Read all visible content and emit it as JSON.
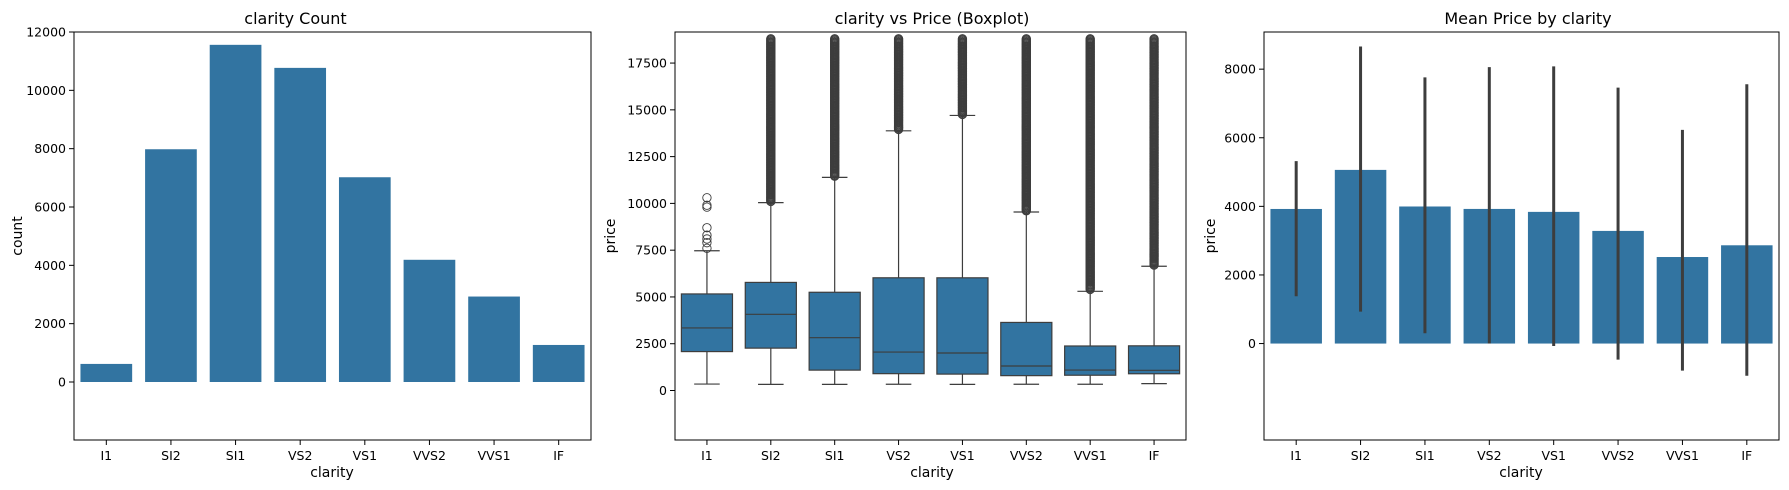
{
  "colors": {
    "bar": "#3274a1",
    "line": "#3d3d3d",
    "axis": "#000000"
  },
  "chart_data": [
    {
      "type": "bar",
      "title": "clarity Count",
      "xlabel": "clarity",
      "ylabel": "count",
      "categories": [
        "I1",
        "SI2",
        "SI1",
        "VS2",
        "VS1",
        "VVS2",
        "VVS1",
        "IF"
      ],
      "values": [
        620,
        7980,
        11560,
        10770,
        7020,
        4190,
        2930,
        1270
      ],
      "ylim": [
        0,
        12000
      ],
      "yticks": [
        "0",
        "2000",
        "4000",
        "6000",
        "8000",
        "10000",
        "12000"
      ],
      "grid": false
    },
    {
      "type": "boxplot",
      "title": "clarity vs Price (Boxplot)",
      "xlabel": "clarity",
      "ylabel": "price",
      "categories": [
        "I1",
        "SI2",
        "SI1",
        "VS2",
        "VS1",
        "VVS2",
        "VVS1",
        "IF"
      ],
      "ylim": [
        0,
        19000
      ],
      "yticks": [
        "0",
        "2500",
        "5000",
        "7500",
        "10000",
        "12500",
        "15000",
        "17500"
      ],
      "boxes": [
        {
          "label": "I1",
          "whislo": 345,
          "q1": 2080,
          "med": 3344,
          "q3": 5161,
          "whishi": 7470,
          "outliers": [
            7600,
            7900,
            8100,
            8300,
            8700,
            9800,
            9900,
            10300
          ]
        },
        {
          "label": "SI2",
          "whislo": 326,
          "q1": 2264,
          "med": 4072,
          "q3": 5777,
          "whishi": 10040,
          "outlier_range": [
            10100,
            18800
          ]
        },
        {
          "label": "SI1",
          "whislo": 326,
          "q1": 1089,
          "med": 2822,
          "q3": 5250,
          "whishi": 11390,
          "outlier_range": [
            11450,
            18800
          ]
        },
        {
          "label": "VS2",
          "whislo": 334,
          "q1": 900,
          "med": 2054,
          "q3": 6024,
          "whishi": 13880,
          "outlier_range": [
            13950,
            18800
          ]
        },
        {
          "label": "VS1",
          "whislo": 327,
          "q1": 876,
          "med": 2005,
          "q3": 6023,
          "whishi": 14700,
          "outlier_range": [
            14750,
            18800
          ]
        },
        {
          "label": "VVS2",
          "whislo": 336,
          "q1": 794,
          "med": 1311,
          "q3": 3638,
          "whishi": 9540,
          "outlier_range": [
            9600,
            18800
          ]
        },
        {
          "label": "VVS1",
          "whislo": 336,
          "q1": 816,
          "med": 1093,
          "q3": 2379,
          "whishi": 5300,
          "outlier_range": [
            5400,
            18800
          ]
        },
        {
          "label": "IF",
          "whislo": 369,
          "q1": 895,
          "med": 1080,
          "q3": 2388,
          "whishi": 6640,
          "outlier_range": [
            6700,
            18800
          ]
        }
      ],
      "grid": false
    },
    {
      "type": "bar",
      "title": "Mean Price by clarity",
      "xlabel": "clarity",
      "ylabel": "price",
      "categories": [
        "I1",
        "SI2",
        "SI1",
        "VS2",
        "VS1",
        "VVS2",
        "VVS1",
        "IF"
      ],
      "values": [
        3924,
        5063,
        3996,
        3925,
        3839,
        3284,
        2523,
        2865
      ],
      "errors": [
        [
          1380,
          5320
        ],
        [
          930,
          8660
        ],
        [
          300,
          7760
        ],
        [
          0,
          8060
        ],
        [
          -70,
          8080
        ],
        [
          -470,
          7460
        ],
        [
          -790,
          6230
        ],
        [
          -940,
          7560
        ]
      ],
      "ylim": [
        -1500,
        9200
      ],
      "yticks": [
        "0",
        "2000",
        "4000",
        "6000",
        "8000"
      ],
      "grid": false
    }
  ]
}
